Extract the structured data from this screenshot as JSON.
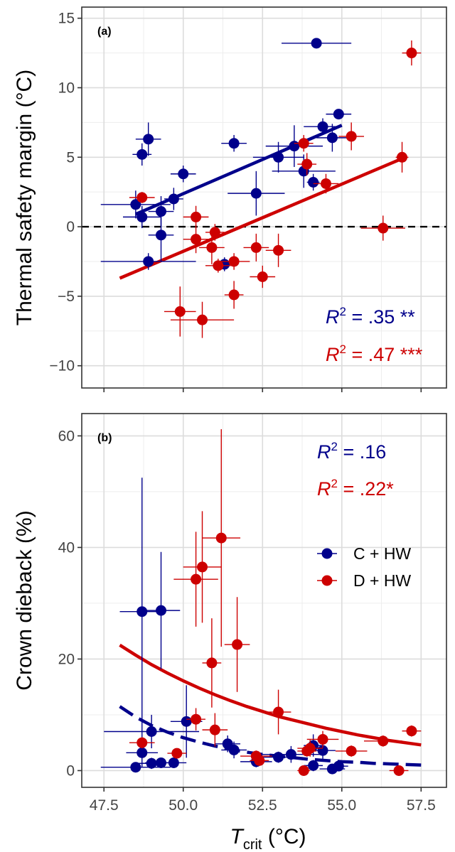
{
  "colors": {
    "c_hw": "#00008B",
    "d_hw": "#CD0000",
    "grid_major": "#DCDCDC",
    "grid_minor": "#EDEDED",
    "frame": "#333333"
  },
  "legend": [
    {
      "key": "c_hw",
      "label": "C + HW"
    },
    {
      "key": "d_hw",
      "label": "D + HW"
    }
  ],
  "x_axis": {
    "label_main": "T",
    "label_sub": "crit",
    "label_unit": "(°C)",
    "range": [
      46.8,
      58.3
    ],
    "ticks": [
      47.5,
      50.0,
      52.5,
      55.0,
      57.5
    ],
    "tick_labels": [
      "47.5",
      "50.0",
      "52.5",
      "55.0",
      "57.5"
    ]
  },
  "chart_data": [
    {
      "type": "scatter",
      "panel_label": "(a)",
      "ylabel": "Thermal safety margin  (°C)",
      "ylim": [
        -11.6,
        15.8
      ],
      "yticks": [
        -10,
        -5,
        0,
        5,
        10,
        15
      ],
      "ytick_labels": [
        "−10",
        "−5",
        "0",
        "5",
        "10",
        "15"
      ],
      "reference_line": {
        "y": 0,
        "style": "dashed"
      },
      "annotations": [
        {
          "key": "c_hw",
          "r2_value": " = .35 **"
        },
        {
          "key": "d_hw",
          "r2_value": " = .47 ***"
        }
      ],
      "series": [
        {
          "key": "c_hw",
          "name": "C + HW",
          "points": [
            {
              "x": 54.2,
              "y": 13.2,
              "xerr": 1.1,
              "yerr": 0.3
            },
            {
              "x": 54.9,
              "y": 8.1,
              "xerr": 0.4,
              "yerr": 0.3
            },
            {
              "x": 54.4,
              "y": 7.2,
              "xerr": 0.6,
              "yerr": 0.6
            },
            {
              "x": 54.7,
              "y": 6.4,
              "xerr": 0.5,
              "yerr": 1.0
            },
            {
              "x": 48.9,
              "y": 6.3,
              "xerr": 0.4,
              "yerr": 1.2
            },
            {
              "x": 51.6,
              "y": 6.0,
              "xerr": 0.4,
              "yerr": 0.6
            },
            {
              "x": 53.5,
              "y": 5.8,
              "xerr": 0.9,
              "yerr": 1.5
            },
            {
              "x": 48.7,
              "y": 5.2,
              "xerr": 0.3,
              "yerr": 0.8
            },
            {
              "x": 53.0,
              "y": 5.0,
              "xerr": 0.8,
              "yerr": 1.1
            },
            {
              "x": 53.8,
              "y": 4.0,
              "xerr": 1.0,
              "yerr": 1.2
            },
            {
              "x": 50.0,
              "y": 3.8,
              "xerr": 0.4,
              "yerr": 0.6
            },
            {
              "x": 54.1,
              "y": 3.2,
              "xerr": 0.2,
              "yerr": 0.6
            },
            {
              "x": 52.3,
              "y": 2.4,
              "xerr": 0.9,
              "yerr": 1.6
            },
            {
              "x": 49.7,
              "y": 2.0,
              "xerr": 0.3,
              "yerr": 0.8
            },
            {
              "x": 48.5,
              "y": 1.6,
              "xerr": 1.1,
              "yerr": 1.0
            },
            {
              "x": 49.3,
              "y": 1.1,
              "xerr": 0.4,
              "yerr": 1.1
            },
            {
              "x": 48.7,
              "y": 0.7,
              "xerr": 0.6,
              "yerr": 0.8
            },
            {
              "x": 49.3,
              "y": -0.6,
              "xerr": 0.4,
              "yerr": 1.9
            },
            {
              "x": 51.3,
              "y": -2.7,
              "xerr": 0.3,
              "yerr": 0.5
            },
            {
              "x": 48.9,
              "y": -2.5,
              "xerr": 1.5,
              "yerr": 0.6
            }
          ],
          "fit": {
            "x": [
              48.5,
              55.0
            ],
            "y": [
              0.9,
              7.3
            ],
            "style": "solid"
          }
        },
        {
          "key": "d_hw",
          "name": "D + HW",
          "points": [
            {
              "x": 57.2,
              "y": 12.5,
              "xerr": 0.3,
              "yerr": 0.9
            },
            {
              "x": 55.3,
              "y": 6.5,
              "xerr": 0.4,
              "yerr": 1.0
            },
            {
              "x": 53.8,
              "y": 6.0,
              "xerr": 0.3,
              "yerr": 0.6
            },
            {
              "x": 56.9,
              "y": 5.0,
              "xerr": 0.2,
              "yerr": 1.1
            },
            {
              "x": 53.9,
              "y": 4.5,
              "xerr": 0.3,
              "yerr": 0.8
            },
            {
              "x": 54.5,
              "y": 3.1,
              "xerr": 0.4,
              "yerr": 0.7
            },
            {
              "x": 48.7,
              "y": 2.1,
              "xerr": 0.4,
              "yerr": 0.4
            },
            {
              "x": 50.4,
              "y": 0.7,
              "xerr": 0.4,
              "yerr": 0.8
            },
            {
              "x": 56.3,
              "y": -0.1,
              "xerr": 0.7,
              "yerr": 0.9
            },
            {
              "x": 51.0,
              "y": -0.4,
              "xerr": 0.3,
              "yerr": 0.6
            },
            {
              "x": 50.4,
              "y": -0.9,
              "xerr": 0.4,
              "yerr": 1.0
            },
            {
              "x": 52.3,
              "y": -1.5,
              "xerr": 0.4,
              "yerr": 1.0
            },
            {
              "x": 50.9,
              "y": -1.5,
              "xerr": 0.4,
              "yerr": 1.2
            },
            {
              "x": 53.0,
              "y": -1.7,
              "xerr": 0.4,
              "yerr": 1.2
            },
            {
              "x": 51.6,
              "y": -2.5,
              "xerr": 0.5,
              "yerr": 0.6
            },
            {
              "x": 51.1,
              "y": -2.8,
              "xerr": 0.4,
              "yerr": 0.5
            },
            {
              "x": 52.5,
              "y": -3.6,
              "xerr": 0.4,
              "yerr": 0.8
            },
            {
              "x": 51.6,
              "y": -4.9,
              "xerr": 0.3,
              "yerr": 1.0
            },
            {
              "x": 49.9,
              "y": -6.1,
              "xerr": 0.5,
              "yerr": 1.8
            },
            {
              "x": 50.6,
              "y": -6.7,
              "xerr": 1.0,
              "yerr": 1.3
            }
          ],
          "fit": {
            "x": [
              48.0,
              57.0
            ],
            "y": [
              -3.7,
              5.0
            ],
            "style": "solid"
          }
        }
      ]
    },
    {
      "type": "scatter",
      "panel_label": "(b)",
      "ylabel": "Crown dieback (%)",
      "ylim": [
        -3,
        64
      ],
      "yticks": [
        0,
        20,
        40,
        60
      ],
      "ytick_labels": [
        "0",
        "20",
        "40",
        "60"
      ],
      "annotations": [
        {
          "key": "c_hw",
          "r2_value": " = .16"
        },
        {
          "key": "d_hw",
          "r2_value": " = .22*"
        }
      ],
      "series": [
        {
          "key": "c_hw",
          "name": "C + HW",
          "points": [
            {
              "x": 48.7,
              "y": 28.5,
              "xerr": 0.7,
              "yerr": 24.0
            },
            {
              "x": 49.3,
              "y": 28.7,
              "xerr": 0.6,
              "yerr": 10.5
            },
            {
              "x": 50.1,
              "y": 8.8,
              "xerr": 0.5,
              "yerr": 6.5
            },
            {
              "x": 49.0,
              "y": 7.0,
              "xerr": 1.5,
              "yerr": 3.0
            },
            {
              "x": 48.7,
              "y": 3.2,
              "xerr": 0.5,
              "yerr": 2.5
            },
            {
              "x": 51.4,
              "y": 4.8,
              "xerr": 0.4,
              "yerr": 1.5
            },
            {
              "x": 51.6,
              "y": 3.7,
              "xerr": 0.4,
              "yerr": 1.5
            },
            {
              "x": 53.4,
              "y": 2.9,
              "xerr": 1.0,
              "yerr": 1.5
            },
            {
              "x": 54.1,
              "y": 4.5,
              "xerr": 0.3,
              "yerr": 2.0
            },
            {
              "x": 54.4,
              "y": 3.6,
              "xerr": 0.4,
              "yerr": 1.5
            },
            {
              "x": 53.0,
              "y": 2.4,
              "xerr": 0.5,
              "yerr": 1.0
            },
            {
              "x": 52.3,
              "y": 1.6,
              "xerr": 0.5,
              "yerr": 1.0
            },
            {
              "x": 49.0,
              "y": 1.3,
              "xerr": 0.4,
              "yerr": 1.0
            },
            {
              "x": 49.3,
              "y": 1.4,
              "xerr": 0.5,
              "yerr": 0.8
            },
            {
              "x": 49.7,
              "y": 1.4,
              "xerr": 0.4,
              "yerr": 0.8
            },
            {
              "x": 54.1,
              "y": 0.9,
              "xerr": 0.3,
              "yerr": 1.0
            },
            {
              "x": 54.7,
              "y": 0.3,
              "xerr": 0.4,
              "yerr": 0.5
            },
            {
              "x": 54.9,
              "y": 0.8,
              "xerr": 0.3,
              "yerr": 0.5
            },
            {
              "x": 48.5,
              "y": 0.6,
              "xerr": 1.1,
              "yerr": 0.5
            }
          ],
          "fit": {
            "x": [
              48.0,
              48.5,
              49.0,
              49.5,
              50.0,
              50.5,
              51.0,
              51.5,
              52.0,
              52.5,
              53.0,
              53.5,
              54.0,
              54.5,
              55.0,
              55.5,
              56.0,
              56.5,
              57.0,
              57.5
            ],
            "y": [
              11.5,
              9.6,
              8.1,
              6.9,
              5.9,
              5.1,
              4.4,
              3.8,
              3.3,
              2.9,
              2.6,
              2.3,
              2.0,
              1.8,
              1.6,
              1.5,
              1.3,
              1.2,
              1.1,
              1.0
            ],
            "style": "dashed"
          }
        },
        {
          "key": "d_hw",
          "name": "D + HW",
          "points": [
            {
              "x": 51.2,
              "y": 41.7,
              "xerr": 0.6,
              "yerr": 19.5
            },
            {
              "x": 50.6,
              "y": 36.5,
              "xerr": 0.6,
              "yerr": 10.0
            },
            {
              "x": 50.4,
              "y": 34.3,
              "xerr": 0.7,
              "yerr": 8.5
            },
            {
              "x": 51.7,
              "y": 22.6,
              "xerr": 0.4,
              "yerr": 8.5
            },
            {
              "x": 50.9,
              "y": 19.3,
              "xerr": 0.3,
              "yerr": 8.0
            },
            {
              "x": 53.0,
              "y": 10.5,
              "xerr": 0.4,
              "yerr": 4.0
            },
            {
              "x": 50.4,
              "y": 9.2,
              "xerr": 0.3,
              "yerr": 2.0
            },
            {
              "x": 51.0,
              "y": 7.3,
              "xerr": 0.4,
              "yerr": 3.0
            },
            {
              "x": 57.2,
              "y": 7.1,
              "xerr": 0.3,
              "yerr": 1.0
            },
            {
              "x": 54.4,
              "y": 5.6,
              "xerr": 0.5,
              "yerr": 1.5
            },
            {
              "x": 56.3,
              "y": 5.3,
              "xerr": 0.6,
              "yerr": 1.0
            },
            {
              "x": 48.7,
              "y": 5.0,
              "xerr": 0.4,
              "yerr": 1.0
            },
            {
              "x": 54.0,
              "y": 4.0,
              "xerr": 0.4,
              "yerr": 1.5
            },
            {
              "x": 53.9,
              "y": 3.5,
              "xerr": 0.3,
              "yerr": 1.0
            },
            {
              "x": 55.3,
              "y": 3.5,
              "xerr": 0.5,
              "yerr": 1.0
            },
            {
              "x": 49.8,
              "y": 3.1,
              "xerr": 0.3,
              "yerr": 0.8
            },
            {
              "x": 52.3,
              "y": 2.6,
              "xerr": 0.5,
              "yerr": 1.0
            },
            {
              "x": 52.4,
              "y": 1.8,
              "xerr": 0.3,
              "yerr": 0.6
            },
            {
              "x": 53.8,
              "y": 0.0,
              "xerr": 0.2,
              "yerr": 0.5
            },
            {
              "x": 56.8,
              "y": 0.0,
              "xerr": 0.3,
              "yerr": 0.5
            }
          ],
          "fit": {
            "x": [
              48.0,
              48.5,
              49.0,
              49.5,
              50.0,
              50.5,
              51.0,
              51.5,
              52.0,
              52.5,
              53.0,
              53.5,
              54.0,
              54.5,
              55.0,
              55.5,
              56.0,
              56.5,
              57.0,
              57.5
            ],
            "y": [
              22.5,
              20.7,
              19.0,
              17.5,
              16.1,
              14.8,
              13.6,
              12.5,
              11.5,
              10.6,
              9.7,
              9.0,
              8.3,
              7.6,
              7.0,
              6.4,
              5.9,
              5.4,
              5.0,
              4.6
            ],
            "style": "solid"
          }
        }
      ]
    }
  ]
}
